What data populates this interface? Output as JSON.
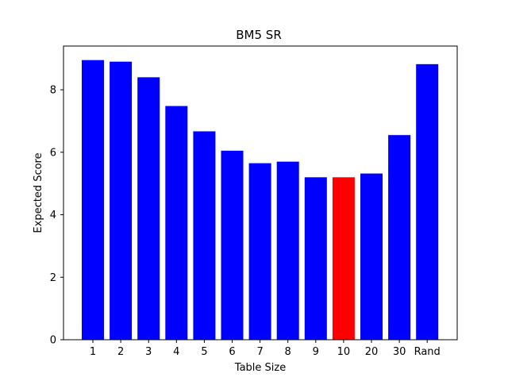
{
  "chart_data": {
    "type": "bar",
    "title": "BM5 SR",
    "xlabel": "Table Size",
    "ylabel": "Expected Score",
    "categories": [
      "1",
      "2",
      "3",
      "4",
      "5",
      "6",
      "7",
      "8",
      "9",
      "10",
      "20",
      "30",
      "Rand"
    ],
    "values": [
      8.95,
      8.9,
      8.4,
      7.48,
      6.67,
      6.05,
      5.65,
      5.7,
      5.2,
      5.2,
      5.32,
      6.55,
      8.82
    ],
    "colors": [
      "#0000ff",
      "#0000ff",
      "#0000ff",
      "#0000ff",
      "#0000ff",
      "#0000ff",
      "#0000ff",
      "#0000ff",
      "#0000ff",
      "#ff0000",
      "#0000ff",
      "#0000ff",
      "#0000ff"
    ],
    "ylim": [
      0,
      9.4
    ],
    "yticks": [
      0,
      2,
      4,
      6,
      8
    ],
    "grid": false,
    "legend": "none"
  }
}
